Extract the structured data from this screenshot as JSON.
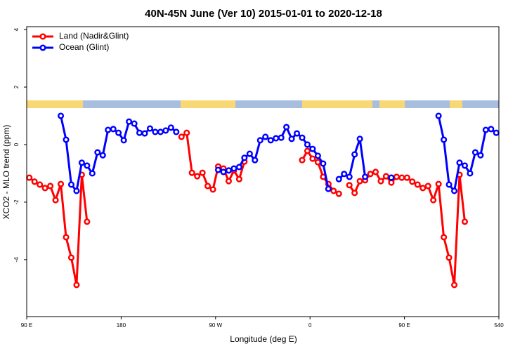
{
  "chart_data": {
    "type": "line",
    "title": "40N-45N June (Ver 10)   2015-01-01 to 2020-12-18",
    "x_label": "Longitude (deg E)",
    "y_label": "XCO2 - MLO trend (ppm)",
    "x": [
      92.5,
      97.5,
      102.5,
      107.5,
      112.5,
      117.5,
      122.5,
      127.5,
      132.5,
      137.5,
      142.5,
      147.5,
      152.5,
      157.5,
      162.5,
      167.5,
      172.5,
      177.5,
      182.5,
      187.5,
      192.5,
      197.5,
      202.5,
      207.5,
      212.5,
      217.5,
      222.5,
      227.5,
      232.5,
      237.5,
      242.5,
      247.5,
      252.5,
      257.5,
      262.5,
      267.5,
      272.5,
      277.5,
      282.5,
      287.5,
      292.5,
      297.5,
      302.5,
      307.5,
      312.5,
      317.5,
      322.5,
      327.5,
      332.5,
      337.5,
      342.5,
      347.5,
      352.5,
      357.5,
      362.5,
      367.5,
      372.5,
      377.5,
      382.5,
      387.5,
      392.5,
      397.5,
      402.5,
      407.5,
      412.5,
      417.5,
      422.5,
      427.5,
      432.5,
      437.5,
      442.5,
      447.5,
      452.5,
      457.5,
      462.5,
      467.5,
      472.5,
      477.5,
      482.5,
      487.5,
      492.5,
      497.5,
      502.5,
      507.5,
      512.5,
      517.5,
      522.5,
      527.5,
      532.5,
      537.5
    ],
    "series": [
      {
        "name": "Land (Nadir&Glint)",
        "color": "#ff0000",
        "values": [
          -1.15,
          -1.29,
          -1.39,
          -1.51,
          -1.44,
          -1.93,
          -1.37,
          -3.22,
          -3.93,
          -4.88,
          -1.05,
          -2.68,
          null,
          null,
          null,
          null,
          null,
          null,
          null,
          null,
          null,
          null,
          null,
          null,
          null,
          null,
          null,
          null,
          null,
          0.27,
          0.41,
          -0.98,
          -1.1,
          -0.98,
          -1.44,
          -1.56,
          -0.76,
          -0.83,
          -1.27,
          -0.9,
          -1.2,
          -0.59,
          null,
          null,
          null,
          null,
          null,
          null,
          null,
          null,
          null,
          null,
          -0.54,
          -0.22,
          -0.49,
          -0.61,
          -1.12,
          -1.37,
          -1.61,
          -1.71,
          null,
          -1.41,
          -1.68,
          -1.27,
          -1.24,
          -1.02,
          -0.95,
          -1.27,
          -1.1,
          -1.32,
          -1.12,
          -1.15,
          -1.15,
          -1.29,
          -1.39,
          -1.51,
          -1.44,
          -1.93,
          -1.37,
          -3.22,
          -3.93,
          -4.88,
          -1.05,
          -2.68,
          null,
          null,
          null,
          null,
          null,
          null
        ]
      },
      {
        "name": "Ocean (Glint)",
        "color": "#0000ff",
        "values": [
          null,
          null,
          null,
          null,
          null,
          null,
          1.0,
          0.17,
          -1.39,
          -1.61,
          -0.63,
          -0.73,
          -1.0,
          -0.27,
          -0.37,
          0.51,
          0.54,
          0.41,
          0.15,
          0.8,
          0.73,
          0.41,
          0.39,
          0.56,
          0.44,
          0.44,
          0.49,
          0.59,
          0.44,
          null,
          null,
          null,
          null,
          null,
          null,
          null,
          -0.88,
          -0.95,
          -0.9,
          -0.83,
          -0.78,
          -0.46,
          -0.32,
          -0.54,
          0.15,
          0.27,
          0.15,
          0.22,
          0.24,
          0.61,
          0.2,
          0.39,
          0.24,
          0,
          -0.15,
          -0.39,
          -0.66,
          -1.54,
          null,
          -1.2,
          -1.02,
          -1.12,
          -0.34,
          0.2,
          -1.12,
          null,
          null,
          null,
          null,
          -1.15,
          null,
          null,
          null,
          null,
          null,
          null,
          null,
          null,
          1.0,
          0.17,
          -1.39,
          -1.61,
          -0.63,
          -0.73,
          -1.0,
          -0.27,
          -0.37,
          0.51,
          0.54,
          0.41
        ]
      }
    ],
    "xlim": [
      90,
      540
    ],
    "ylim": [
      -5.98,
      4.1
    ],
    "xticks": [
      {
        "value": 90,
        "label": "90 E"
      },
      180,
      {
        "value": 270,
        "label": "90 W"
      },
      {
        "value": 360,
        "label": "0"
      },
      {
        "value": 450,
        "label": "90 E"
      },
      540
    ],
    "yticks": [
      -4,
      -2,
      0,
      2,
      4
    ],
    "legend": "top-left"
  }
}
